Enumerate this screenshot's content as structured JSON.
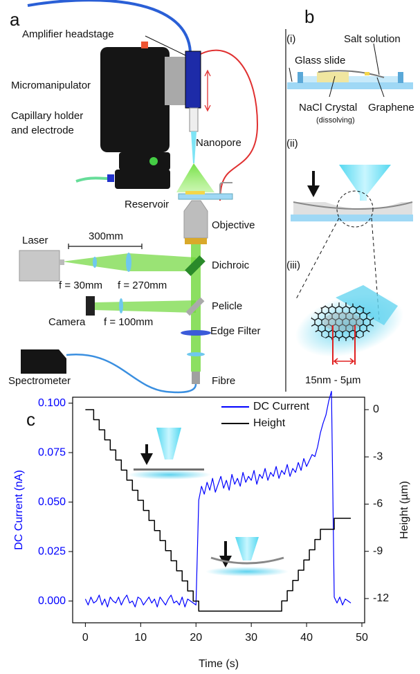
{
  "panels": {
    "a": {
      "label": "a",
      "amplifier": "Amplifier headstage",
      "micromanipulator": "Micromanipulator",
      "holder": [
        "Capillary holder",
        "and electrode"
      ],
      "nanopore": "Nanopore",
      "reservoir": "Reservoir",
      "objective": "Objective",
      "distance": "300mm",
      "laser": "Laser",
      "lens1": "f = 30mm",
      "lens2": "f = 270mm",
      "dichroic": "Dichroic",
      "camera": "Camera",
      "lens3": "f = 100mm",
      "pelicle": "Pelicle",
      "filter": "Edge Filter",
      "spectrometer": "Spectrometer",
      "fibre": "Fibre"
    },
    "b": {
      "label": "b",
      "step1": "(i)",
      "glass": "Glass slide",
      "salt": "Salt solution",
      "crystal": "NaCl Crystal",
      "dissolving": "(dissolving)",
      "graphene": "Graphene",
      "step2": "(ii)",
      "step3": "(iii)",
      "scale": "15nm - 5µm"
    },
    "c": {
      "label": "c"
    }
  },
  "chart_data": {
    "type": "line",
    "xlabel": "Time (s)",
    "ylabel": "DC Current (nA)",
    "y2label": "Height (µm)",
    "xlim": [
      -2.3,
      50.5
    ],
    "xticks": [
      0,
      10,
      20,
      30,
      40,
      50
    ],
    "ylim": [
      -0.011,
      0.103
    ],
    "yticks": [
      {
        "value": 0,
        "label": "0.000"
      },
      {
        "value": 0.025,
        "label": "0.025"
      },
      {
        "value": 0.05,
        "label": "0.050"
      },
      {
        "value": 0.075,
        "label": "0.075"
      },
      {
        "value": 0.1,
        "label": "0.100"
      }
    ],
    "y2lim": [
      -13.54,
      0.79
    ],
    "y2ticks": [
      0,
      -3,
      -6,
      -9,
      -12
    ],
    "legend": "upper right",
    "series": [
      {
        "name": "DC Current",
        "color": "#0000ff",
        "x": [
          0,
          0.5,
          1,
          1.5,
          2,
          2.5,
          3,
          3.5,
          4,
          4.5,
          5,
          5.5,
          6,
          6.5,
          7,
          7.5,
          8,
          8.5,
          9,
          9.5,
          10,
          10.5,
          11,
          11.5,
          12,
          12.5,
          13,
          13.5,
          14,
          14.5,
          15,
          15.5,
          16,
          16.5,
          17,
          17.5,
          18,
          18.5,
          19,
          19.5,
          20,
          20.5,
          21,
          21.5,
          22,
          22.5,
          23,
          23.5,
          24,
          24.5,
          25,
          25.5,
          26,
          26.5,
          27,
          27.5,
          28,
          28.5,
          29,
          29.5,
          30,
          30.5,
          31,
          31.5,
          32,
          32.5,
          33,
          33.5,
          34,
          34.5,
          35,
          35.5,
          36,
          36.5,
          37,
          37.5,
          38,
          38.5,
          39,
          39.5,
          40,
          40.5,
          41,
          41.5,
          42,
          42.5,
          43,
          43.5,
          44,
          44.5,
          45,
          45.5,
          46,
          46.5,
          47,
          47.5,
          48
        ],
        "values": [
          0.001,
          -0.002,
          0.002,
          -0.001,
          0.0,
          0.003,
          -0.002,
          0.001,
          -0.003,
          0.002,
          0.0,
          -0.001,
          0.002,
          -0.002,
          0.001,
          0.003,
          -0.001,
          0.0,
          -0.003,
          0.002,
          0.001,
          -0.002,
          0.0,
          0.002,
          -0.001,
          0.001,
          -0.003,
          0.002,
          0.0,
          -0.002,
          0.001,
          0.003,
          -0.001,
          0.0,
          -0.002,
          0.002,
          -0.003,
          0.001,
          0.0,
          -0.001,
          -0.002,
          0.051,
          0.058,
          0.054,
          0.06,
          0.056,
          0.062,
          0.055,
          0.059,
          0.063,
          0.057,
          0.061,
          0.056,
          0.064,
          0.059,
          0.062,
          0.058,
          0.065,
          0.06,
          0.063,
          0.061,
          0.066,
          0.059,
          0.064,
          0.062,
          0.067,
          0.061,
          0.065,
          0.063,
          0.068,
          0.062,
          0.066,
          0.064,
          0.069,
          0.063,
          0.067,
          0.065,
          0.07,
          0.066,
          0.072,
          0.068,
          0.071,
          0.074,
          0.073,
          0.078,
          0.085,
          0.09,
          0.094,
          0.101,
          0.106,
          0.002,
          -0.001,
          0.002,
          -0.002,
          0.001,
          0.0,
          -0.001
        ]
      },
      {
        "name": "Height",
        "color": "#000000",
        "axis": "y2",
        "x": [
          0,
          1.5,
          1.5,
          2.5,
          2.5,
          3.5,
          3.5,
          4.5,
          4.5,
          5.5,
          5.5,
          6.5,
          6.5,
          7.5,
          7.5,
          8.5,
          8.5,
          9.5,
          9.5,
          10.5,
          10.5,
          11.5,
          11.5,
          12.5,
          12.5,
          13.5,
          13.5,
          14.5,
          14.5,
          15.5,
          15.5,
          16.5,
          16.5,
          17.5,
          17.5,
          18.5,
          18.5,
          19.5,
          19.5,
          20.5,
          20.5,
          35.5,
          35.5,
          36.5,
          36.5,
          37.5,
          37.5,
          38.5,
          38.5,
          39.5,
          39.5,
          40.5,
          40.5,
          41.5,
          41.5,
          42.5,
          42.5,
          45,
          45,
          48
        ],
        "values": [
          0,
          0,
          -0.64,
          -0.64,
          -1.28,
          -1.28,
          -1.92,
          -1.92,
          -2.56,
          -2.56,
          -3.2,
          -3.2,
          -3.84,
          -3.84,
          -4.48,
          -4.48,
          -5.12,
          -5.12,
          -5.76,
          -5.76,
          -6.4,
          -6.4,
          -7.04,
          -7.04,
          -7.68,
          -7.68,
          -8.32,
          -8.32,
          -8.96,
          -8.96,
          -9.6,
          -9.6,
          -10.24,
          -10.24,
          -10.88,
          -10.88,
          -11.52,
          -11.52,
          -12.16,
          -12.16,
          -12.8,
          -12.8,
          -12.15,
          -12.15,
          -11.5,
          -11.5,
          -10.85,
          -10.85,
          -10.2,
          -10.2,
          -9.55,
          -9.55,
          -8.9,
          -8.9,
          -8.25,
          -8.25,
          -7.6,
          -7.6,
          -6.9,
          -6.9
        ]
      }
    ]
  }
}
